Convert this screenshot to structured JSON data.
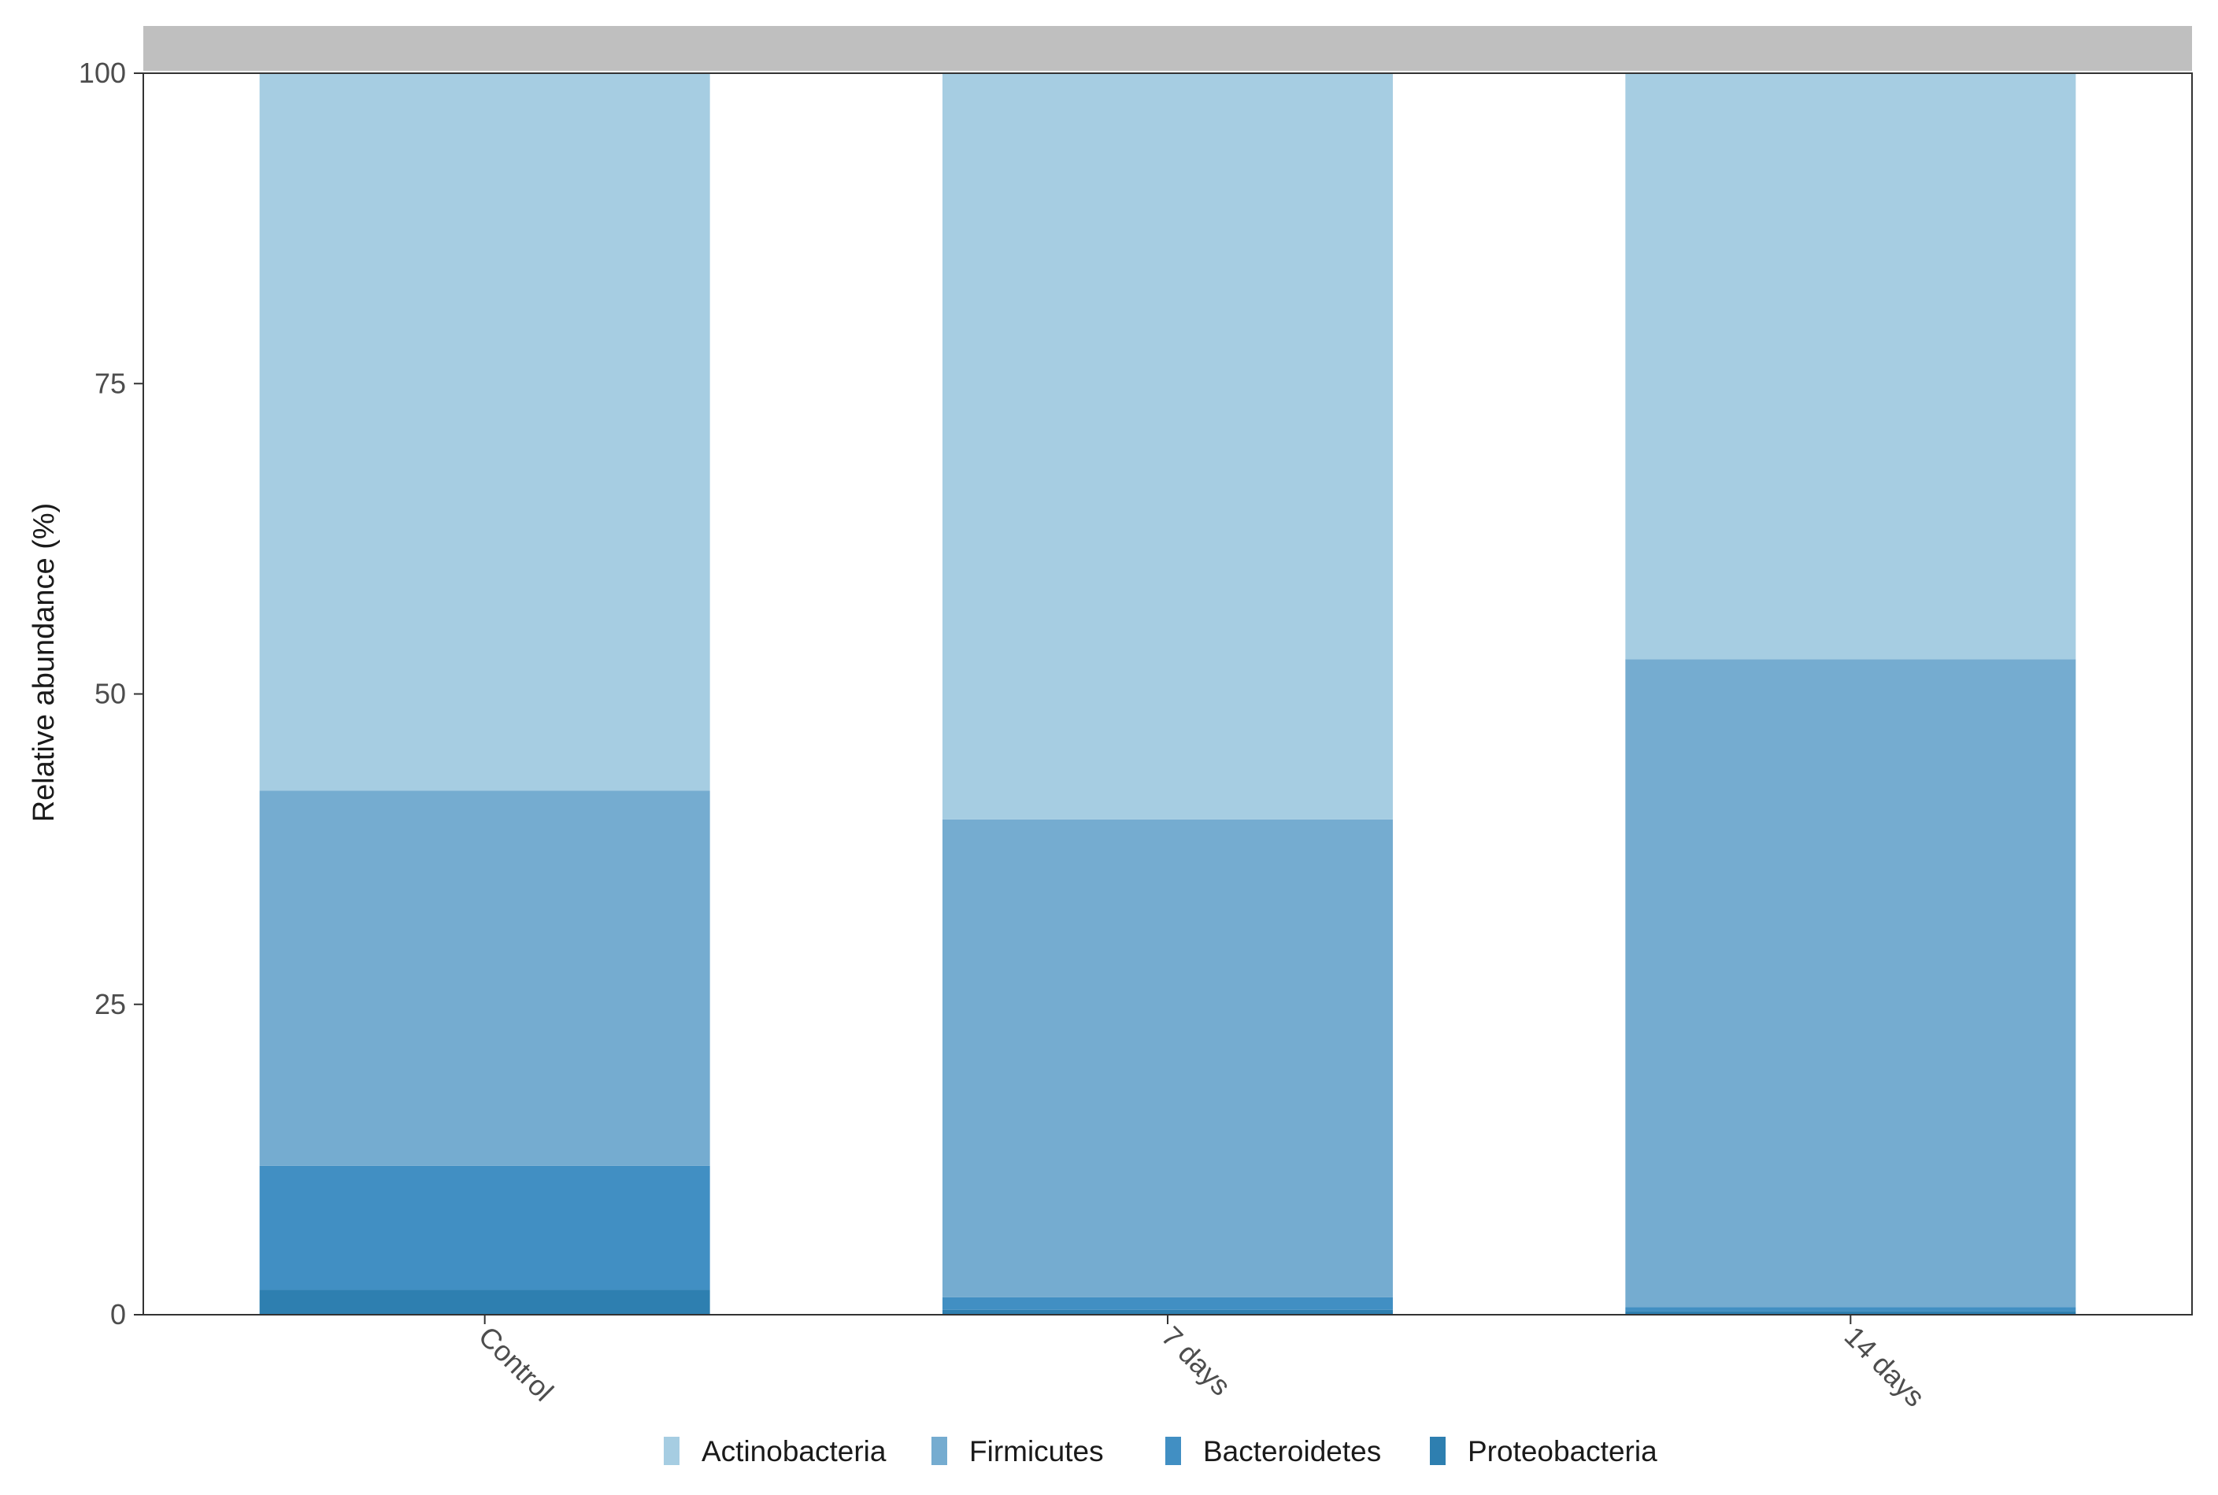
{
  "chart_data": {
    "type": "bar",
    "stacked": true,
    "categories": [
      "Control",
      "7 days",
      "14 days"
    ],
    "series": [
      {
        "name": "Proteobacteria",
        "color": "#2e7fb0",
        "values": [
          2.0,
          0.4,
          0.3
        ]
      },
      {
        "name": "Bacteroidetes",
        "color": "#418fc3",
        "values": [
          10.0,
          1.0,
          0.3
        ]
      },
      {
        "name": "Firmicutes",
        "color": "#75acd0",
        "values": [
          30.2,
          38.5,
          52.2
        ]
      },
      {
        "name": "Actinobacteria",
        "color": "#a6cde2",
        "values": [
          57.8,
          60.1,
          47.2
        ]
      }
    ],
    "legend_order": [
      "Actinobacteria",
      "Firmicutes",
      "Bacteroidetes",
      "Proteobacteria"
    ],
    "ylabel": "Relative abundance (%)",
    "xlabel": "",
    "ylim": [
      0,
      100
    ],
    "yticks": [
      "0",
      "25",
      "50",
      "75",
      "100"
    ],
    "ytick_values": [
      0,
      25,
      50,
      75,
      100
    ],
    "legend_position": "bottom",
    "grid": false,
    "x_tick_rotation": "-45",
    "strip_color": "#bfbfbf"
  }
}
